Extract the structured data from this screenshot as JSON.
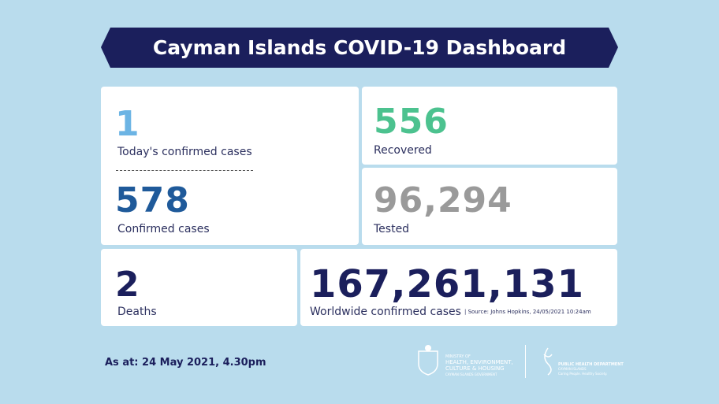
{
  "header": {
    "title": "Cayman Islands COVID-19 Dashboard"
  },
  "stats": {
    "today": {
      "value": "1",
      "label": "Today's confirmed cases"
    },
    "confirmed": {
      "value": "578",
      "label": "Confirmed cases"
    },
    "recovered": {
      "value": "556",
      "label": "Recovered"
    },
    "tested": {
      "value": "96,294",
      "label": "Tested"
    },
    "deaths": {
      "value": "2",
      "label": "Deaths"
    },
    "worldwide": {
      "value": "167,261,131",
      "label": "Worldwide confirmed cases",
      "source": "| Source: Johns Hopkins, 24/05/2021 10:24am"
    }
  },
  "footer": {
    "as_at": "As at: 24 May 2021, 4.30pm",
    "ministry": {
      "line1": "MINISTRY OF",
      "line2": "HEALTH, ENVIRONMENT,",
      "line3": "CULTURE & HOUSING",
      "line4": "CAYMAN ISLANDS GOVERNMENT"
    },
    "phd": {
      "line1": "PUBLIC HEALTH DEPARTMENT",
      "line2": "CAYMAN ISLANDS",
      "line3": "Caring People. Healthy Society."
    }
  }
}
